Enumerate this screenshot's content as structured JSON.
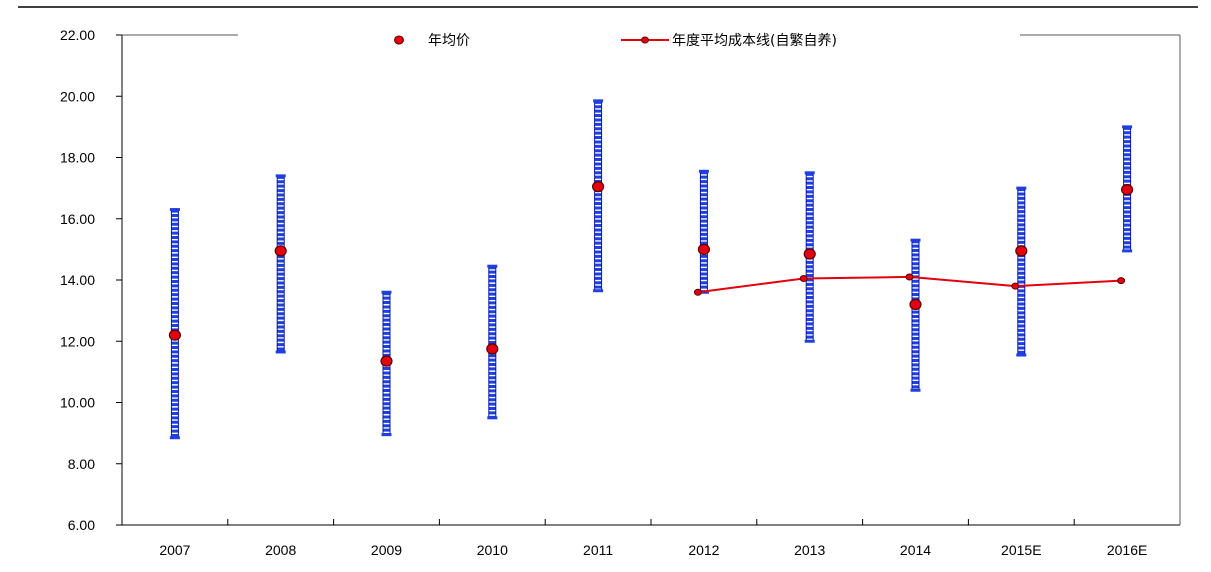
{
  "chart_data": {
    "type": "scatter",
    "title": "",
    "xlabel": "",
    "ylabel": "",
    "categories": [
      "2007",
      "2008",
      "2009",
      "2010",
      "2011",
      "2012",
      "2013",
      "2014",
      "2015E",
      "2016E"
    ],
    "ylim": [
      6,
      22
    ],
    "yticks": [
      "6.00",
      "8.00",
      "10.00",
      "12.00",
      "14.00",
      "16.00",
      "18.00",
      "20.00",
      "22.00"
    ],
    "ranges": [
      {
        "low": 8.85,
        "high": 16.3
      },
      {
        "low": 11.65,
        "high": 17.4
      },
      {
        "low": 8.95,
        "high": 13.6
      },
      {
        "low": 9.5,
        "high": 14.45
      },
      {
        "low": 13.65,
        "high": 19.85
      },
      {
        "low": 13.6,
        "high": 17.55
      },
      {
        "low": 12.0,
        "high": 17.5
      },
      {
        "low": 10.4,
        "high": 15.3
      },
      {
        "low": 11.55,
        "high": 17.0
      },
      {
        "low": 14.95,
        "high": 19.0
      }
    ],
    "series": [
      {
        "name": "年均价",
        "kind": "marker",
        "color": "#e3000f",
        "values": [
          12.2,
          14.95,
          11.35,
          11.75,
          17.05,
          15.0,
          14.85,
          13.2,
          14.95,
          16.95
        ]
      },
      {
        "name": "年度平均成本线(自繁自养)",
        "kind": "line",
        "color": "#e3000f",
        "values": [
          null,
          null,
          null,
          null,
          null,
          13.6,
          14.05,
          14.1,
          13.8,
          13.98
        ]
      }
    ],
    "legend": "top-center",
    "grid": false,
    "range_color": "#1f3fe0"
  }
}
